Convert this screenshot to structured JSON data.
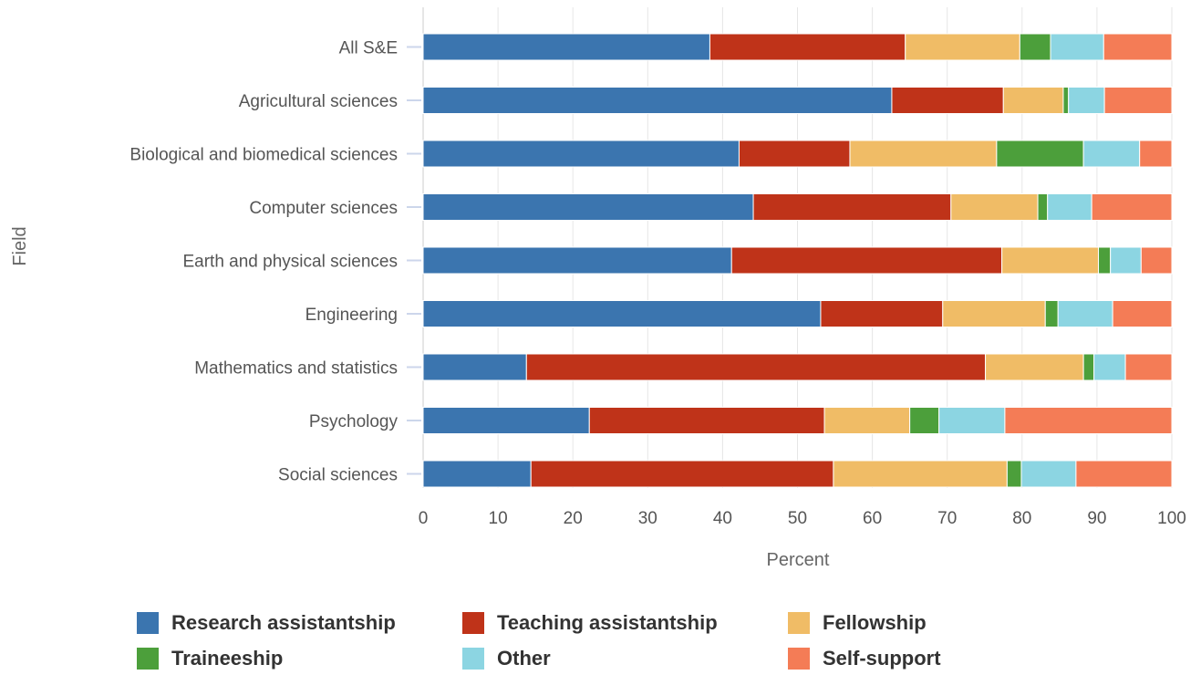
{
  "chart_data": {
    "type": "bar",
    "orientation": "horizontal",
    "stacked": true,
    "xlabel": "Percent",
    "ylabel": "Field",
    "xlim": [
      0,
      100
    ],
    "xticks": [
      0,
      10,
      20,
      30,
      40,
      50,
      60,
      70,
      80,
      90,
      100
    ],
    "grid": true,
    "legend_position": "bottom",
    "categories": [
      "All S&E",
      "Agricultural sciences",
      "Biological and biomedical sciences",
      "Computer sciences",
      "Earth and physical sciences",
      "Engineering",
      "Mathematics and statistics",
      "Psychology",
      "Social sciences"
    ],
    "series": [
      {
        "name": "Research assistantship",
        "color": "#3b75af",
        "values": [
          38.3,
          62.6,
          42.2,
          44.1,
          41.2,
          53.1,
          13.8,
          22.2,
          14.4
        ]
      },
      {
        "name": "Teaching assistantship",
        "color": "#bf3319",
        "values": [
          26.1,
          14.9,
          14.8,
          26.4,
          36.1,
          16.3,
          61.3,
          31.4,
          40.4
        ]
      },
      {
        "name": "Fellowship",
        "color": "#f0bc66",
        "values": [
          15.3,
          8.0,
          19.6,
          11.6,
          12.9,
          13.7,
          13.1,
          11.4,
          23.2
        ]
      },
      {
        "name": "Traineeship",
        "color": "#4c9f3b",
        "values": [
          4.1,
          0.7,
          11.6,
          1.3,
          1.6,
          1.7,
          1.4,
          3.9,
          1.9
        ]
      },
      {
        "name": "Other",
        "color": "#8cd5e2",
        "values": [
          7.1,
          4.8,
          7.5,
          5.9,
          4.1,
          7.3,
          4.2,
          8.8,
          7.3
        ]
      },
      {
        "name": "Self-support",
        "color": "#f47c56",
        "values": [
          9.1,
          9.0,
          4.3,
          10.7,
          4.1,
          7.9,
          6.2,
          22.3,
          12.8
        ]
      }
    ]
  }
}
